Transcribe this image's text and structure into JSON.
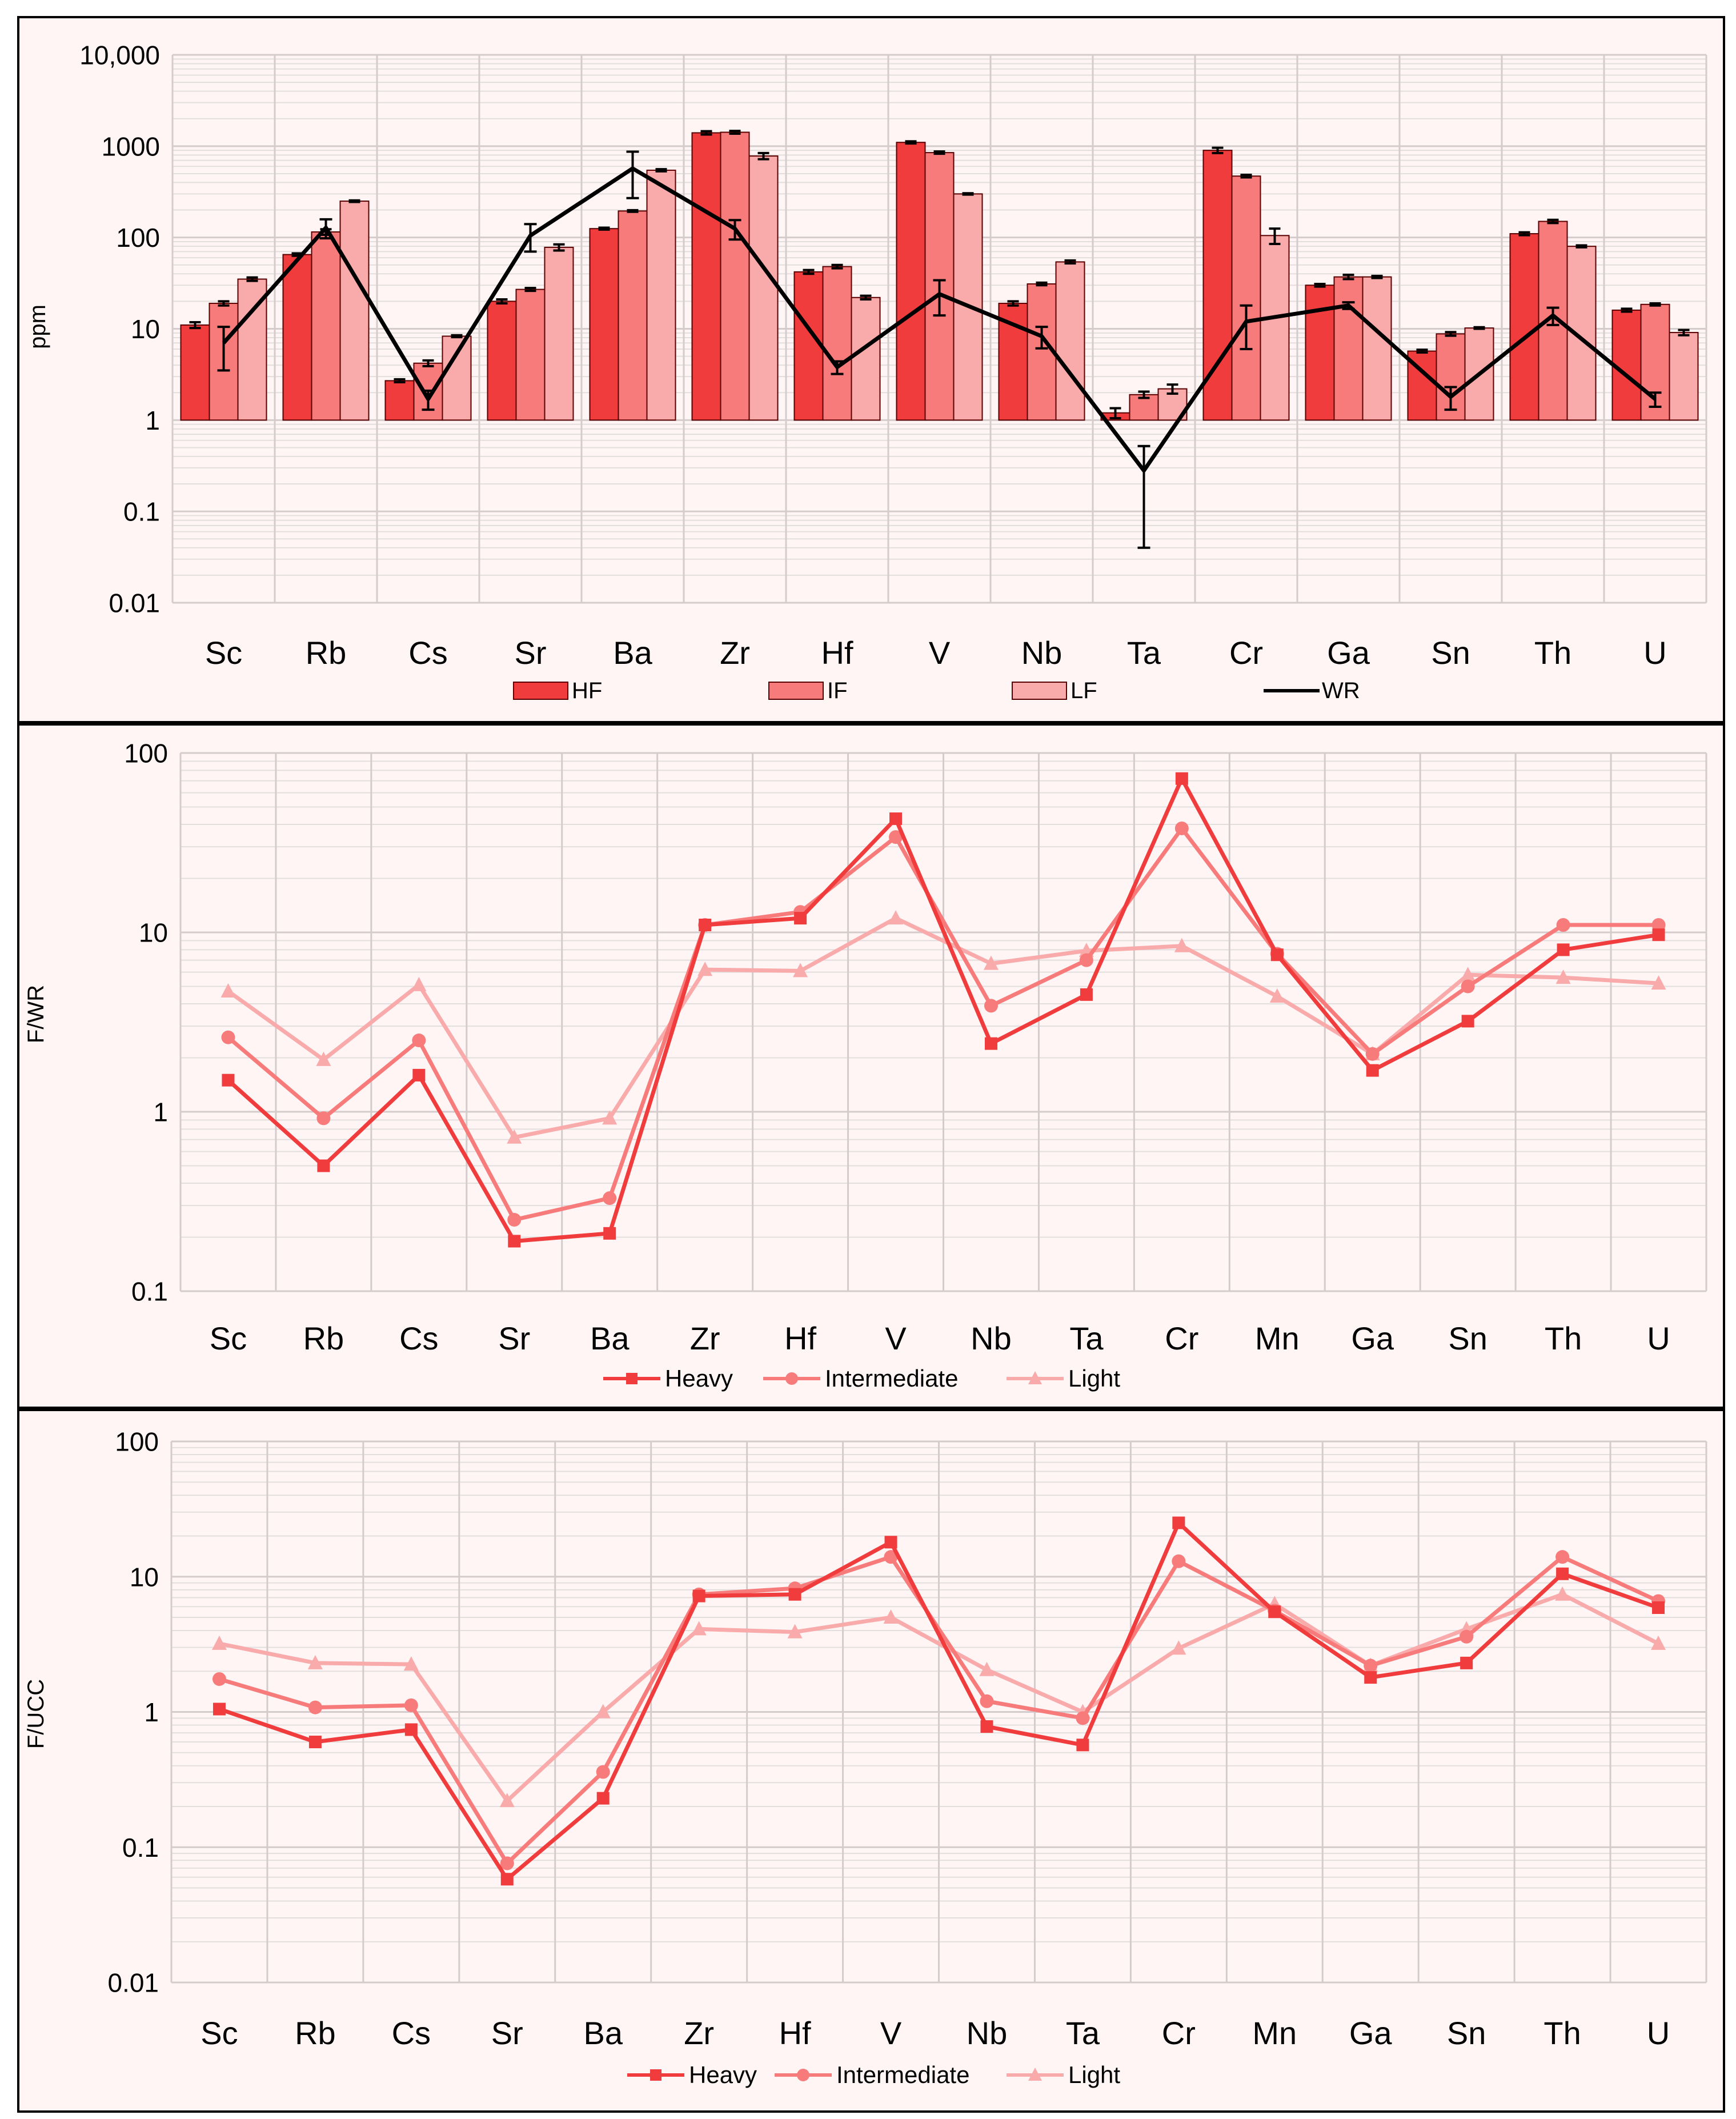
{
  "colors": {
    "heavy": "#f03c3c",
    "intermediate": "#f77b7b",
    "light": "#f9aaaa",
    "wr": "#000000",
    "grid": "#e3dede",
    "panel_bg": "#fff5f5"
  },
  "chart_data": [
    {
      "type": "bar",
      "title": "",
      "ylabel": "ppm",
      "yscale": "log",
      "ylim": [
        0.01,
        10000
      ],
      "ytick_labels": [
        "10,000",
        "1000",
        "100",
        "10",
        "1",
        "0.1",
        "0.01"
      ],
      "ytick_values": [
        10000,
        1000,
        100,
        10,
        1,
        0.1,
        0.01
      ],
      "categories": [
        "Sc",
        "Rb",
        "Cs",
        "Sr",
        "Ba",
        "Zr",
        "Hf",
        "V",
        "Nb",
        "Ta",
        "Cr",
        "Ga",
        "Sn",
        "Th",
        "U"
      ],
      "series": [
        {
          "name": "HF",
          "kind": "bar",
          "values": [
            11,
            65,
            2.7,
            20,
            125,
            1400,
            42,
            1100,
            19,
            1.2,
            900,
            30,
            5.7,
            110,
            16
          ],
          "errors": [
            0.8,
            2,
            0.1,
            1,
            3,
            60,
            2,
            30,
            1,
            0.15,
            60,
            1,
            0.2,
            4,
            0.6
          ]
        },
        {
          "name": "IF",
          "kind": "bar",
          "values": [
            19,
            115,
            4.2,
            27,
            195,
            1420,
            48,
            850,
            31,
            1.9,
            470,
            37,
            8.8,
            150,
            18.5
          ],
          "errors": [
            1,
            8,
            0.3,
            1,
            4,
            50,
            2,
            25,
            1,
            0.15,
            15,
            2,
            0.4,
            6,
            0.5
          ]
        },
        {
          "name": "LF",
          "kind": "bar",
          "values": [
            35,
            250,
            8.3,
            78,
            545,
            780,
            22,
            300,
            54,
            2.2,
            105,
            37,
            10.2,
            80,
            9.1
          ],
          "errors": [
            1.5,
            5,
            0.2,
            6,
            15,
            60,
            1,
            5,
            2,
            0.25,
            20,
            1,
            0.2,
            2,
            0.6
          ]
        },
        {
          "name": "WR",
          "kind": "line",
          "values": [
            7,
            128,
            1.7,
            105,
            570,
            125,
            3.8,
            24,
            8.3,
            0.28,
            12,
            18,
            1.8,
            14,
            1.7
          ],
          "errors": [
            3.5,
            30,
            0.4,
            35,
            300,
            30,
            0.6,
            10,
            2.2,
            0.24,
            6,
            1.5,
            0.5,
            3,
            0.3
          ]
        }
      ],
      "legend": [
        "HF",
        "IF",
        "LF",
        "WR"
      ],
      "legend_position": "bottom"
    },
    {
      "type": "line",
      "title": "",
      "ylabel": "F/WR",
      "yscale": "log",
      "ylim": [
        0.1,
        100
      ],
      "ytick_labels": [
        "100",
        "10",
        "1",
        "0.1"
      ],
      "ytick_values": [
        100,
        10,
        1,
        0.1
      ],
      "categories": [
        "Sc",
        "Rb",
        "Cs",
        "Sr",
        "Ba",
        "Zr",
        "Hf",
        "V",
        "Nb",
        "Ta",
        "Cr",
        "Mn",
        "Ga",
        "Sn",
        "Th",
        "U"
      ],
      "series": [
        {
          "name": "Heavy",
          "marker": "square",
          "values": [
            1.5,
            0.5,
            1.6,
            0.19,
            0.21,
            11,
            12,
            43,
            2.4,
            4.5,
            72,
            7.5,
            1.7,
            3.2,
            8,
            9.7
          ]
        },
        {
          "name": "Intermediate",
          "marker": "circle",
          "values": [
            2.6,
            0.92,
            2.5,
            0.25,
            0.33,
            11,
            13,
            34,
            3.9,
            7,
            38,
            7.6,
            2.1,
            5,
            11,
            11
          ]
        },
        {
          "name": "Light",
          "marker": "triangle",
          "values": [
            4.7,
            1.95,
            5.1,
            0.72,
            0.92,
            6.2,
            6.1,
            12,
            6.7,
            7.9,
            8.4,
            4.4,
            2.1,
            5.8,
            5.6,
            5.2
          ]
        }
      ],
      "legend": [
        "Heavy",
        "Intermediate",
        "Light"
      ],
      "legend_position": "bottom"
    },
    {
      "type": "line",
      "title": "",
      "ylabel": "F/UCC",
      "yscale": "log",
      "ylim": [
        0.01,
        100
      ],
      "ytick_labels": [
        "100",
        "10",
        "1",
        "0.1",
        "0.01"
      ],
      "ytick_values": [
        100,
        10,
        1,
        0.1,
        0.01
      ],
      "categories": [
        "Sc",
        "Rb",
        "Cs",
        "Sr",
        "Ba",
        "Zr",
        "Hf",
        "V",
        "Nb",
        "Ta",
        "Cr",
        "Mn",
        "Ga",
        "Sn",
        "Th",
        "U"
      ],
      "series": [
        {
          "name": "Heavy",
          "marker": "square",
          "values": [
            1.05,
            0.6,
            0.74,
            0.058,
            0.23,
            7.2,
            7.4,
            18,
            0.78,
            0.57,
            25,
            5.5,
            1.8,
            2.3,
            10.5,
            5.9
          ]
        },
        {
          "name": "Intermediate",
          "marker": "circle",
          "values": [
            1.75,
            1.08,
            1.12,
            0.076,
            0.36,
            7.4,
            8.2,
            14,
            1.2,
            0.9,
            13,
            5.6,
            2.2,
            3.6,
            14,
            6.6
          ]
        },
        {
          "name": "Light",
          "marker": "triangle",
          "values": [
            3.2,
            2.3,
            2.25,
            0.22,
            1.0,
            4.1,
            3.9,
            5.0,
            2.05,
            1.0,
            2.95,
            6.3,
            2.2,
            4.1,
            7.4,
            3.2
          ]
        }
      ],
      "legend": [
        "Heavy",
        "Intermediate",
        "Light"
      ],
      "legend_position": "bottom"
    }
  ]
}
